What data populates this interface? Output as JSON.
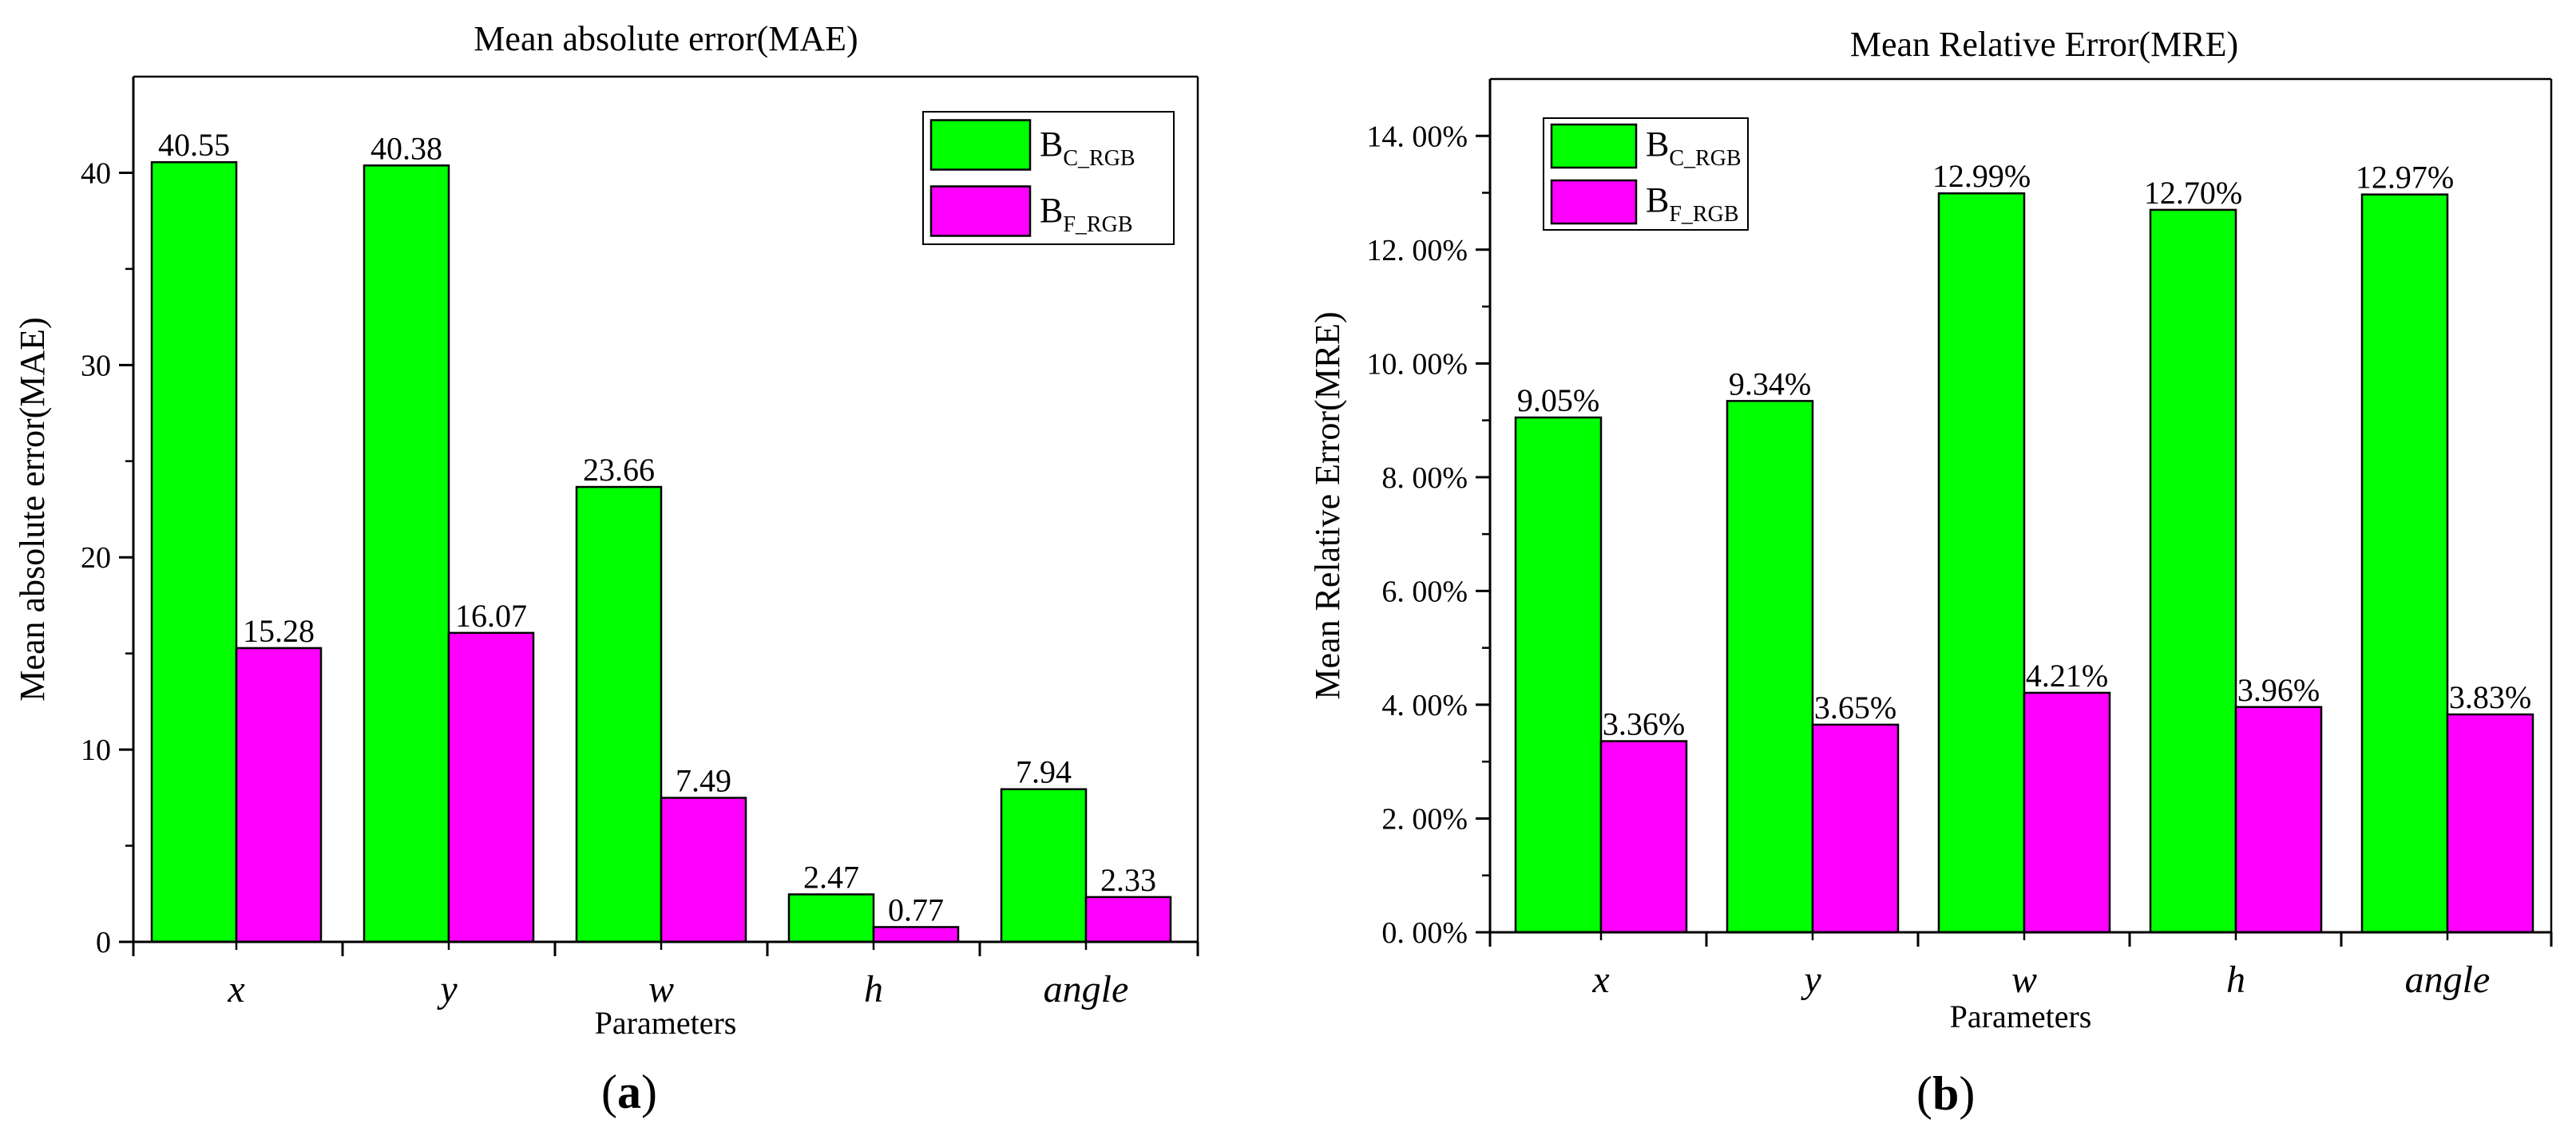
{
  "chart_data": [
    {
      "type": "bar",
      "title": "Mean absolute error(MAE)",
      "xlabel": "Parameters",
      "ylabel": "Mean absolute error(MAE)",
      "panel_label": {
        "open": "(",
        "letter": "a",
        "close": ")"
      },
      "categories": [
        "x",
        "y",
        "w",
        "h",
        "angle"
      ],
      "series": [
        {
          "name": "B",
          "name_sub": "C_RGB",
          "color": "#00ff00",
          "values": [
            40.55,
            40.38,
            23.66,
            2.47,
            7.94
          ]
        },
        {
          "name": "B",
          "name_sub": "F_RGB",
          "color": "#ff00ff",
          "values": [
            15.28,
            16.07,
            7.49,
            0.77,
            2.33
          ]
        }
      ],
      "data_labels": [
        [
          "40.55",
          "40.38",
          "23.66",
          "2.47",
          "7.94"
        ],
        [
          "15.28",
          "16.07",
          "7.49",
          "0.77",
          "2.33"
        ]
      ],
      "ylim": [
        0,
        45
      ],
      "yticks": [
        0,
        10,
        20,
        30,
        40
      ],
      "ytick_labels": [
        "0",
        "10",
        "20",
        "30",
        "40"
      ],
      "grid": false,
      "legend_position": "top-right"
    },
    {
      "type": "bar",
      "title": "Mean Relative Error(MRE)",
      "xlabel": "Parameters",
      "ylabel": "Mean Relative Error(MRE)",
      "panel_label": {
        "open": "(",
        "letter": "b",
        "close": ")"
      },
      "categories": [
        "x",
        "y",
        "w",
        "h",
        "angle"
      ],
      "series": [
        {
          "name": "B",
          "name_sub": "C_RGB",
          "color": "#00ff00",
          "values": [
            9.05,
            9.34,
            12.99,
            12.7,
            12.97
          ]
        },
        {
          "name": "B",
          "name_sub": "F_RGB",
          "color": "#ff00ff",
          "values": [
            3.36,
            3.65,
            4.21,
            3.96,
            3.83
          ]
        }
      ],
      "data_labels": [
        [
          "9.05%",
          "9.34%",
          "12.99%",
          "12.70%",
          "12.97%"
        ],
        [
          "3.36%",
          "3.65%",
          "4.21%",
          "3.96%",
          "3.83%"
        ]
      ],
      "ylim": [
        0,
        15
      ],
      "yticks": [
        0,
        2,
        4,
        6,
        8,
        10,
        12,
        14
      ],
      "ytick_labels": [
        "0. 00%",
        "2. 00%",
        "4. 00%",
        "6. 00%",
        "8. 00%",
        "10. 00%",
        "12. 00%",
        "14. 00%"
      ],
      "grid": false,
      "legend_position": "top-left"
    }
  ]
}
